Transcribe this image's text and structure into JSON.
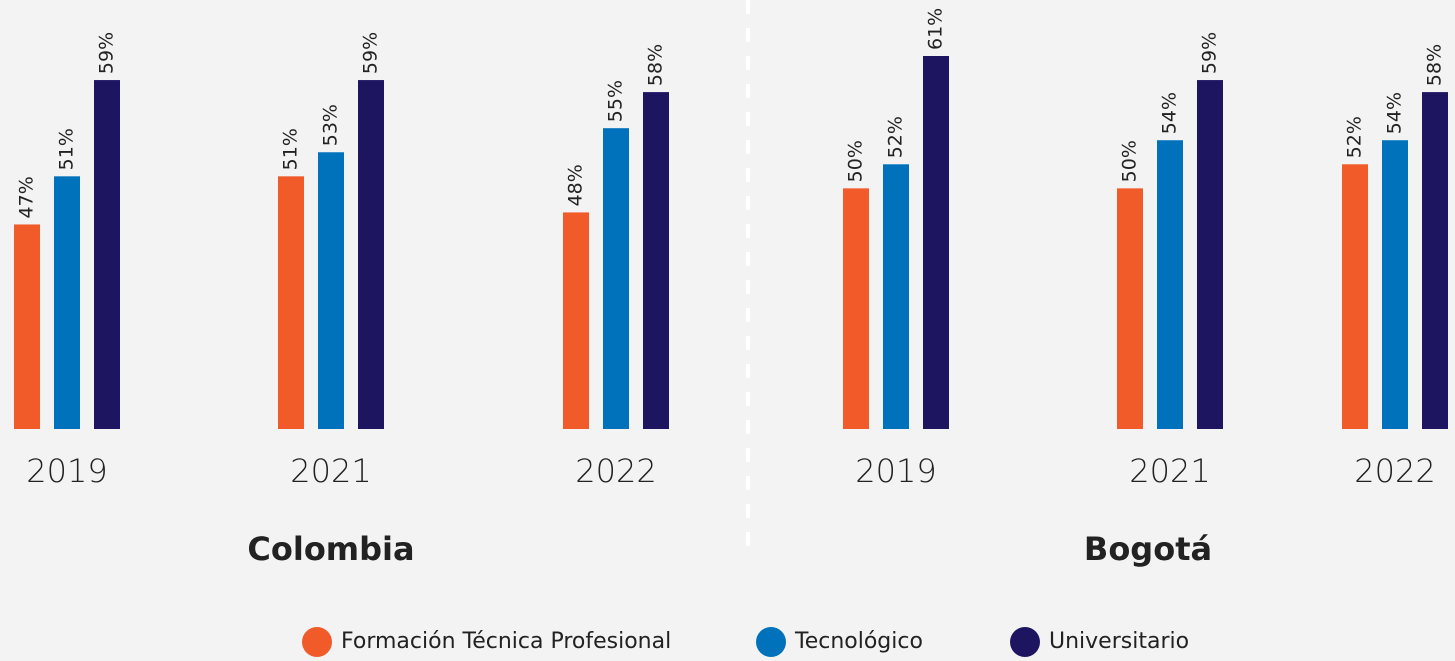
{
  "chart_data": [
    {
      "type": "bar",
      "title": "Colombia",
      "categories": [
        "2019",
        "2021",
        "2022"
      ],
      "ylim": [
        30,
        61
      ],
      "series": [
        {
          "name": "Formación Técnica Profesional",
          "color": "#f15a29",
          "values": [
            47,
            51,
            48
          ],
          "value_labels": [
            "47%",
            "51%",
            "48%"
          ]
        },
        {
          "name": "Tecnológico",
          "color": "#0072bc",
          "values": [
            51,
            53,
            55
          ],
          "value_labels": [
            "51%",
            "53%",
            "55%"
          ]
        },
        {
          "name": "Universitario",
          "color": "#1e1560",
          "values": [
            59,
            59,
            58
          ],
          "value_labels": [
            "59%",
            "59%",
            "58%"
          ]
        }
      ]
    },
    {
      "type": "bar",
      "title": "Bogotá",
      "categories": [
        "2019",
        "2021",
        "2022"
      ],
      "ylim": [
        30,
        61
      ],
      "series": [
        {
          "name": "Formación Técnica Profesional",
          "color": "#f15a29",
          "values": [
            50,
            50,
            52
          ],
          "value_labels": [
            "50%",
            "50%",
            "52%"
          ]
        },
        {
          "name": "Tecnológico",
          "color": "#0072bc",
          "values": [
            52,
            54,
            54
          ],
          "value_labels": [
            "52%",
            "54%",
            "54%"
          ]
        },
        {
          "name": "Universitario",
          "color": "#1e1560",
          "values": [
            61,
            59,
            58
          ],
          "value_labels": [
            "61%",
            "59%",
            "58%"
          ]
        }
      ]
    }
  ]
}
